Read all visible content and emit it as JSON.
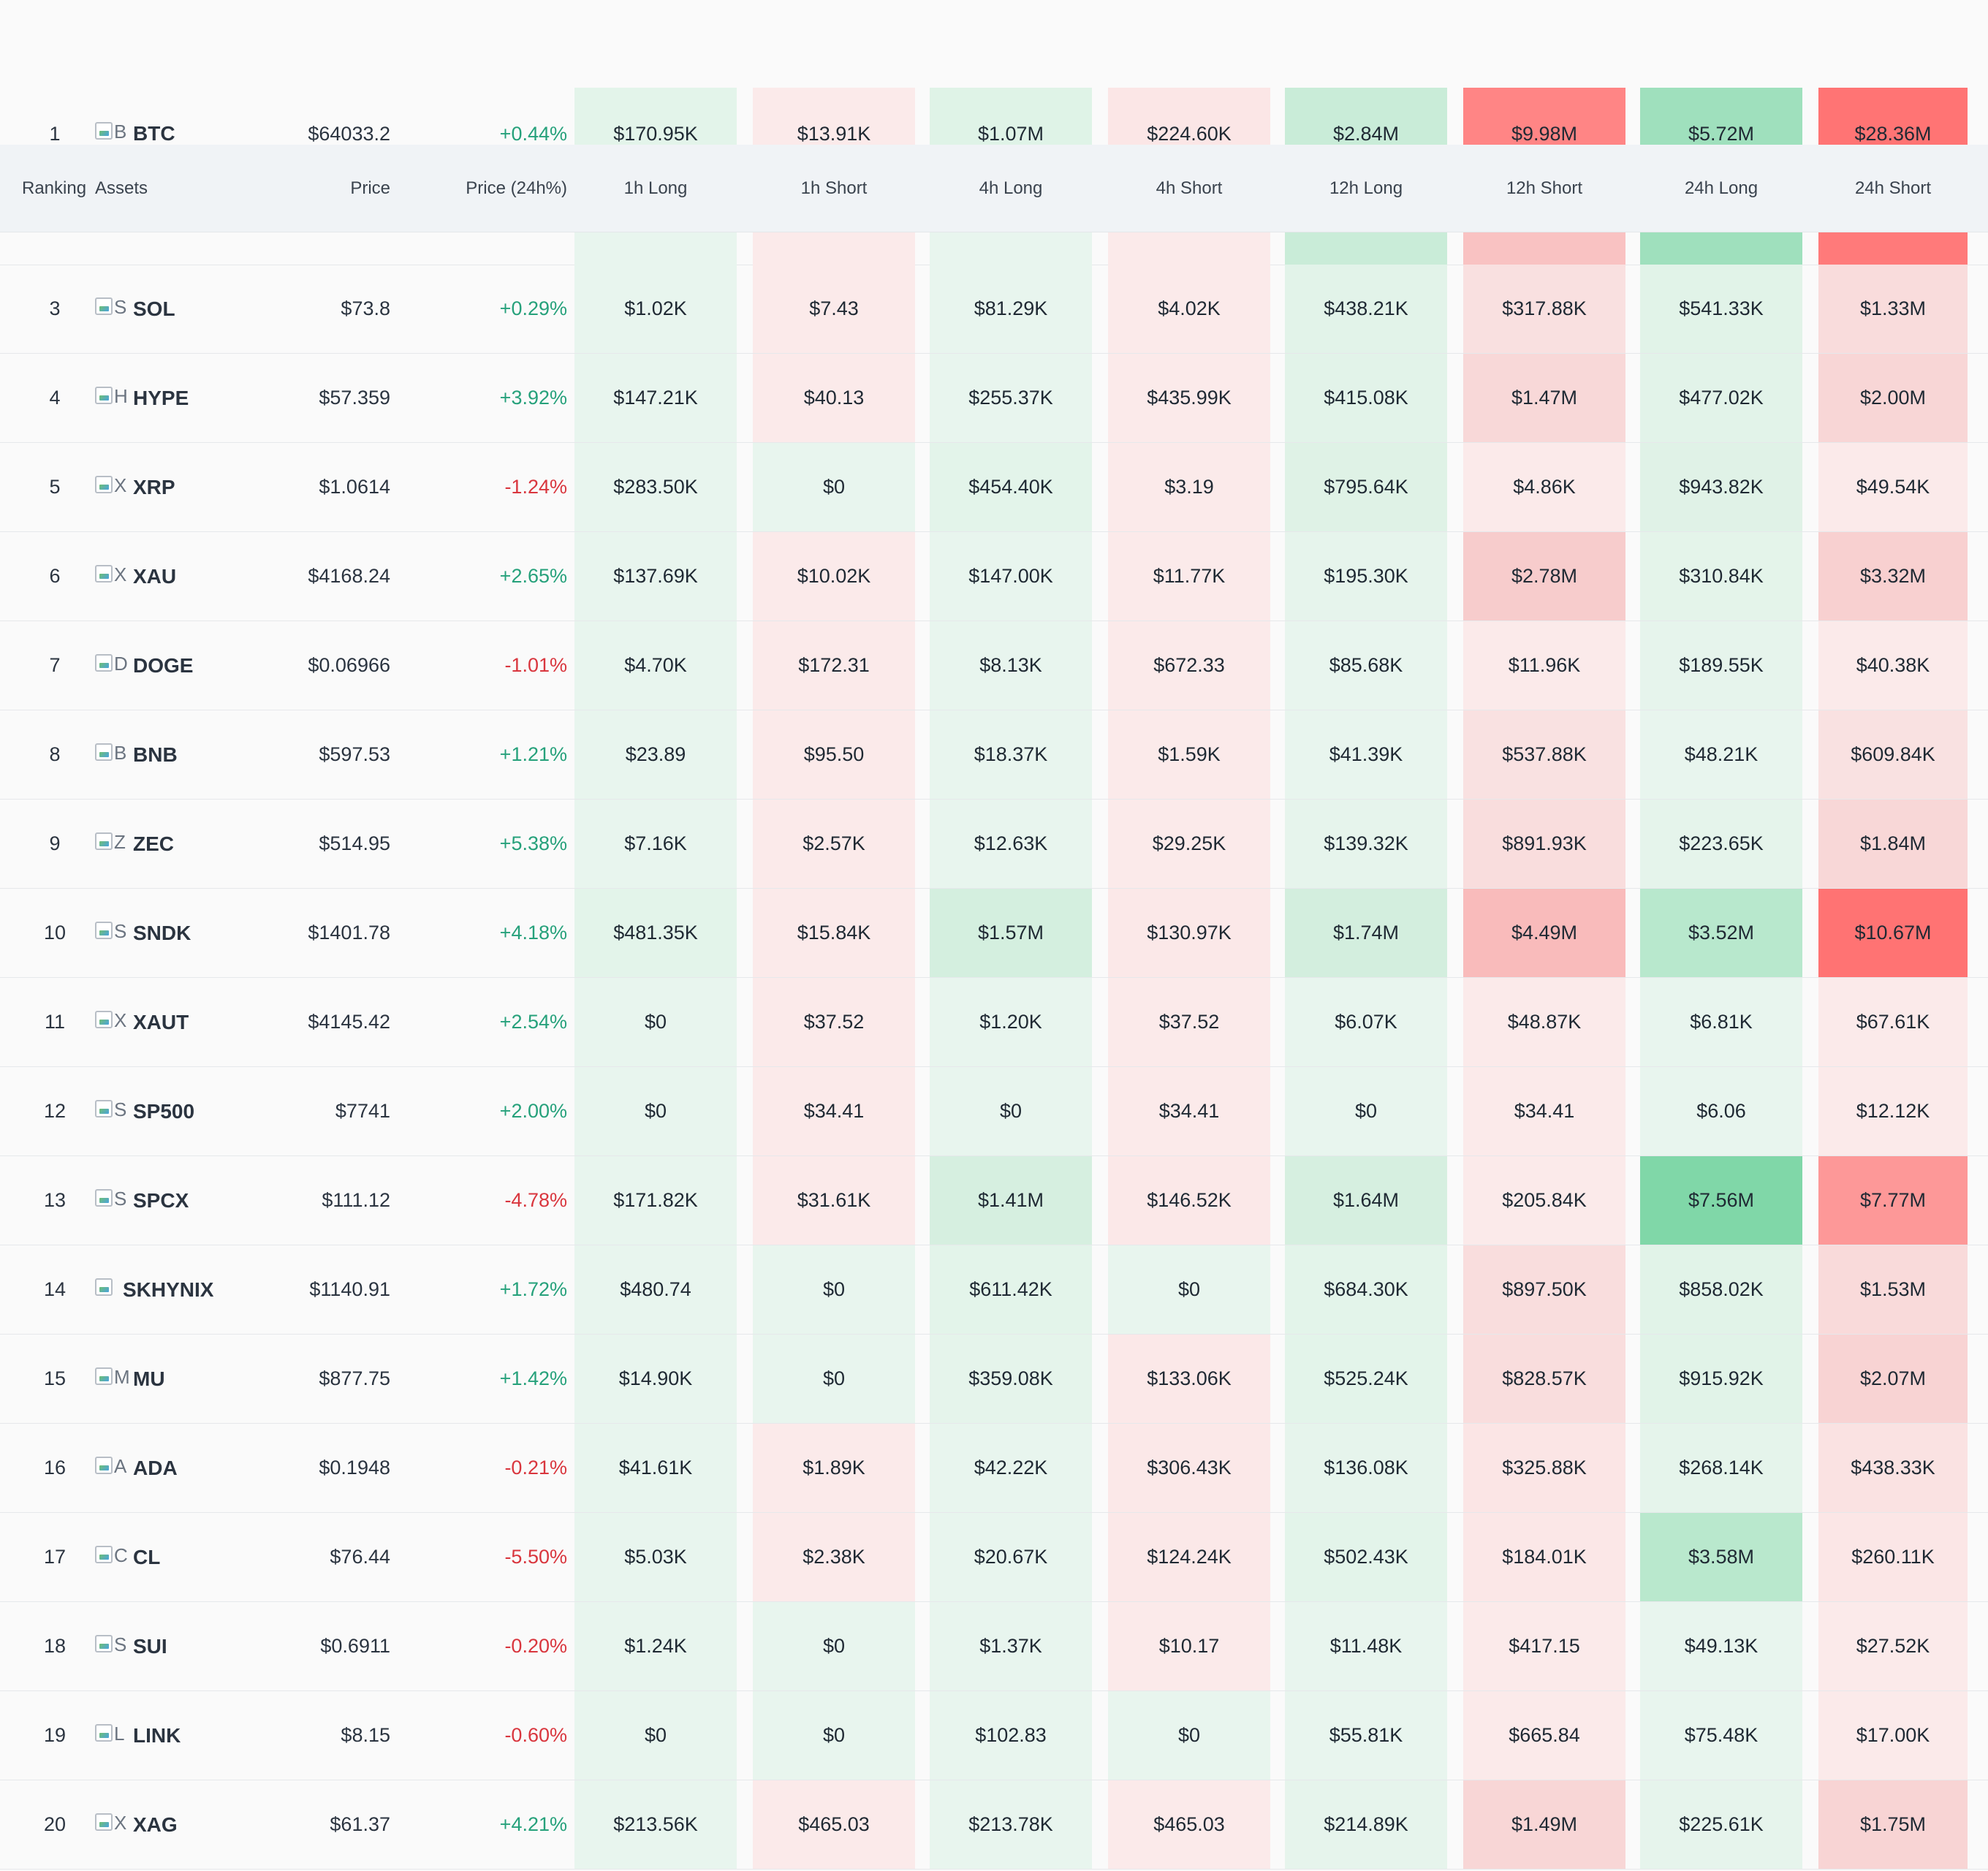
{
  "header": {
    "ranking": "Ranking",
    "assets": "Assets",
    "price": "Price",
    "change": "Price (24h%)",
    "h1_long": "1h Long",
    "h1_short": "1h Short",
    "h4_long": "4h Long",
    "h4_short": "4h Short",
    "h12_long": "12h Long",
    "h12_short": "12h Short",
    "h24_long": "24h Long",
    "h24_short": "24h Short"
  },
  "colors": {
    "long_light": "#e8f5ee",
    "short_light": "#fbeaea",
    "up": "#26a17b",
    "down": "#d9363e"
  },
  "rows": [
    {
      "rank": "1",
      "letter": "B",
      "symbol": "BTC",
      "price": "$64033.2",
      "change": "+0.44%",
      "dir": "up",
      "cells": [
        "$170.95K",
        "$13.91K",
        "$1.07M",
        "$224.60K",
        "$2.84M",
        "$9.98M",
        "$5.72M",
        "$28.36M"
      ],
      "bg": [
        "#e3f4ea",
        "#fbeaea",
        "#dff3e7",
        "#fbe6e6",
        "#c9ecd8",
        "#ff8585",
        "#9fe0bd",
        "#ff7474"
      ]
    },
    {
      "rank": "3",
      "letter": "S",
      "symbol": "SOL",
      "price": "$73.8",
      "change": "+0.29%",
      "dir": "up",
      "cells": [
        "$1.02K",
        "$7.43",
        "$81.29K",
        "$4.02K",
        "$438.21K",
        "$317.88K",
        "$541.33K",
        "$1.33M"
      ],
      "bg": [
        "#e8f5ee",
        "#fbeaea",
        "#e8f5ee",
        "#fbeaea",
        "#e2f3e9",
        "#f9e0e0",
        "#e1f3e8",
        "#f9dcdc"
      ]
    },
    {
      "rank": "4",
      "letter": "H",
      "symbol": "HYPE",
      "price": "$57.359",
      "change": "+3.92%",
      "dir": "up",
      "cells": [
        "$147.21K",
        "$40.13",
        "$255.37K",
        "$435.99K",
        "$415.08K",
        "$1.47M",
        "$477.02K",
        "$2.00M"
      ],
      "bg": [
        "#e8f5ee",
        "#fbeaea",
        "#e8f5ee",
        "#fbeaea",
        "#e2f3e9",
        "#f8d8d8",
        "#e2f3e9",
        "#f8d6d6"
      ]
    },
    {
      "rank": "5",
      "letter": "X",
      "symbol": "XRP",
      "price": "$1.0614",
      "change": "-1.24%",
      "dir": "down",
      "cells": [
        "$283.50K",
        "$0",
        "$454.40K",
        "$3.19",
        "$795.64K",
        "$4.86K",
        "$943.82K",
        "$49.54K"
      ],
      "bg": [
        "#e8f5ee",
        "#e8f5ee",
        "#e3f4ea",
        "#fbeaea",
        "#dff2e6",
        "#fbeaea",
        "#e0f2e7",
        "#fbeaea"
      ]
    },
    {
      "rank": "6",
      "letter": "X",
      "symbol": "XAU",
      "price": "$4168.24",
      "change": "+2.65%",
      "dir": "up",
      "cells": [
        "$137.69K",
        "$10.02K",
        "$147.00K",
        "$11.77K",
        "$195.30K",
        "$2.78M",
        "$310.84K",
        "$3.32M"
      ],
      "bg": [
        "#e8f5ee",
        "#fbeaea",
        "#e8f5ee",
        "#fbeaea",
        "#e6f4ec",
        "#f7cccc",
        "#e4f4ea",
        "#f8d0d0"
      ]
    },
    {
      "rank": "7",
      "letter": "D",
      "symbol": "DOGE",
      "price": "$0.06966",
      "change": "-1.01%",
      "dir": "down",
      "cells": [
        "$4.70K",
        "$172.31",
        "$8.13K",
        "$672.33",
        "$85.68K",
        "$11.96K",
        "$189.55K",
        "$40.38K"
      ],
      "bg": [
        "#e8f5ee",
        "#fbeaea",
        "#e8f5ee",
        "#fbeaea",
        "#e8f5ee",
        "#fbeaea",
        "#e6f4ec",
        "#fbeaea"
      ]
    },
    {
      "rank": "8",
      "letter": "B",
      "symbol": "BNB",
      "price": "$597.53",
      "change": "+1.21%",
      "dir": "up",
      "cells": [
        "$23.89",
        "$95.50",
        "$18.37K",
        "$1.59K",
        "$41.39K",
        "$537.88K",
        "$48.21K",
        "$609.84K"
      ],
      "bg": [
        "#e8f5ee",
        "#fbeaea",
        "#e8f5ee",
        "#fbeaea",
        "#e8f5ee",
        "#f9e1e1",
        "#e8f5ee",
        "#f9e1e1"
      ]
    },
    {
      "rank": "9",
      "letter": "Z",
      "symbol": "ZEC",
      "price": "$514.95",
      "change": "+5.38%",
      "dir": "up",
      "cells": [
        "$7.16K",
        "$2.57K",
        "$12.63K",
        "$29.25K",
        "$139.32K",
        "$891.93K",
        "$223.65K",
        "$1.84M"
      ],
      "bg": [
        "#e8f5ee",
        "#fbeaea",
        "#e8f5ee",
        "#fbeaea",
        "#e6f4ec",
        "#f9dddd",
        "#e5f4eb",
        "#f8d7d7"
      ]
    },
    {
      "rank": "10",
      "letter": "S",
      "symbol": "SNDK",
      "price": "$1401.78",
      "change": "+4.18%",
      "dir": "up",
      "cells": [
        "$481.35K",
        "$15.84K",
        "$1.57M",
        "$130.97K",
        "$1.74M",
        "$4.49M",
        "$3.52M",
        "$10.67M"
      ],
      "bg": [
        "#e3f4ea",
        "#fbeaea",
        "#d4efdf",
        "#fbe8e8",
        "#d3eede",
        "#f9bbbb",
        "#b8e8cd",
        "#ff7373"
      ]
    },
    {
      "rank": "11",
      "letter": "X",
      "symbol": "XAUT",
      "price": "$4145.42",
      "change": "+2.54%",
      "dir": "up",
      "cells": [
        "$0",
        "$37.52",
        "$1.20K",
        "$37.52",
        "$6.07K",
        "$48.87K",
        "$6.81K",
        "$67.61K"
      ],
      "bg": [
        "#e8f5ee",
        "#fbeaea",
        "#e8f5ee",
        "#fbeaea",
        "#e8f5ee",
        "#fbeaea",
        "#e8f5ee",
        "#fbeaea"
      ]
    },
    {
      "rank": "12",
      "letter": "S",
      "symbol": "SP500",
      "price": "$7741",
      "change": "+2.00%",
      "dir": "up",
      "cells": [
        "$0",
        "$34.41",
        "$0",
        "$34.41",
        "$0",
        "$34.41",
        "$6.06",
        "$12.12K"
      ],
      "bg": [
        "#e8f5ee",
        "#fbeaea",
        "#e8f5ee",
        "#fbeaea",
        "#e8f5ee",
        "#fbeaea",
        "#e8f5ee",
        "#fbeaea"
      ]
    },
    {
      "rank": "13",
      "letter": "S",
      "symbol": "SPCX",
      "price": "$111.12",
      "change": "-4.78%",
      "dir": "down",
      "cells": [
        "$171.82K",
        "$31.61K",
        "$1.41M",
        "$146.52K",
        "$1.64M",
        "$205.84K",
        "$7.56M",
        "$7.77M"
      ],
      "bg": [
        "#e8f5ee",
        "#fbeaea",
        "#d6efe0",
        "#fbe8e8",
        "#d6efe0",
        "#fbeaea",
        "#80d7a8",
        "#fd9898"
      ]
    },
    {
      "rank": "14",
      "letter": "",
      "symbol": "SKHYNIX",
      "price": "$1140.91",
      "change": "+1.72%",
      "dir": "up",
      "cells": [
        "$480.74",
        "$0",
        "$611.42K",
        "$0",
        "$684.30K",
        "$897.50K",
        "$858.02K",
        "$1.53M"
      ],
      "bg": [
        "#e8f5ee",
        "#e8f5ee",
        "#e3f4ea",
        "#e8f5ee",
        "#e3f4ea",
        "#f9dddd",
        "#e1f3e8",
        "#f9dada"
      ]
    },
    {
      "rank": "15",
      "letter": "M",
      "symbol": "MU",
      "price": "$877.75",
      "change": "+1.42%",
      "dir": "up",
      "cells": [
        "$14.90K",
        "$0",
        "$359.08K",
        "$133.06K",
        "$525.24K",
        "$828.57K",
        "$915.92K",
        "$2.07M"
      ],
      "bg": [
        "#e8f5ee",
        "#e8f5ee",
        "#e5f4eb",
        "#fbe8e8",
        "#e3f4ea",
        "#f9dddd",
        "#e1f3e8",
        "#f8d3d3"
      ]
    },
    {
      "rank": "16",
      "letter": "A",
      "symbol": "ADA",
      "price": "$0.1948",
      "change": "-0.21%",
      "dir": "down",
      "cells": [
        "$41.61K",
        "$1.89K",
        "$42.22K",
        "$306.43K",
        "$136.08K",
        "$325.88K",
        "$268.14K",
        "$438.33K"
      ],
      "bg": [
        "#e8f5ee",
        "#fbeaea",
        "#e8f5ee",
        "#fbe8e8",
        "#e6f4ec",
        "#fbe5e5",
        "#e5f4eb",
        "#fae2e2"
      ]
    },
    {
      "rank": "17",
      "letter": "C",
      "symbol": "CL",
      "price": "$76.44",
      "change": "-5.50%",
      "dir": "down",
      "cells": [
        "$5.03K",
        "$2.38K",
        "$20.67K",
        "$124.24K",
        "$502.43K",
        "$184.01K",
        "$3.58M",
        "$260.11K"
      ],
      "bg": [
        "#e8f5ee",
        "#fbeaea",
        "#e8f5ee",
        "#fbe8e8",
        "#e3f4ea",
        "#fbe7e7",
        "#b9e8cd",
        "#fbe6e6"
      ]
    },
    {
      "rank": "18",
      "letter": "S",
      "symbol": "SUI",
      "price": "$0.6911",
      "change": "-0.20%",
      "dir": "down",
      "cells": [
        "$1.24K",
        "$0",
        "$1.37K",
        "$10.17",
        "$11.48K",
        "$417.15",
        "$49.13K",
        "$27.52K"
      ],
      "bg": [
        "#e8f5ee",
        "#e8f5ee",
        "#e8f5ee",
        "#fbeaea",
        "#e8f5ee",
        "#fbeaea",
        "#e8f5ee",
        "#fbeaea"
      ]
    },
    {
      "rank": "19",
      "letter": "L",
      "symbol": "LINK",
      "price": "$8.15",
      "change": "-0.60%",
      "dir": "down",
      "cells": [
        "$0",
        "$0",
        "$102.83",
        "$0",
        "$55.81K",
        "$665.84",
        "$75.48K",
        "$17.00K"
      ],
      "bg": [
        "#e8f5ee",
        "#e8f5ee",
        "#e8f5ee",
        "#e8f5ee",
        "#e8f5ee",
        "#fbeaea",
        "#e8f5ee",
        "#fbeaea"
      ]
    },
    {
      "rank": "20",
      "letter": "X",
      "symbol": "XAG",
      "price": "$61.37",
      "change": "+4.21%",
      "dir": "up",
      "cells": [
        "$213.56K",
        "$465.03",
        "$213.78K",
        "$465.03",
        "$214.89K",
        "$1.49M",
        "$225.61K",
        "$1.75M"
      ],
      "bg": [
        "#e8f5ee",
        "#fbeaea",
        "#e8f5ee",
        "#fbeaea",
        "#e6f4ec",
        "#f8d6d6",
        "#e6f4ec",
        "#f8d4d4"
      ]
    }
  ],
  "strip_bg": [
    "#e8f5ee",
    "#fbeaea",
    "#e8f5ee",
    "#fbeaea",
    "#c9ecd8",
    "#f9c2c2",
    "#9fe0bd",
    "#ff7a7a"
  ]
}
